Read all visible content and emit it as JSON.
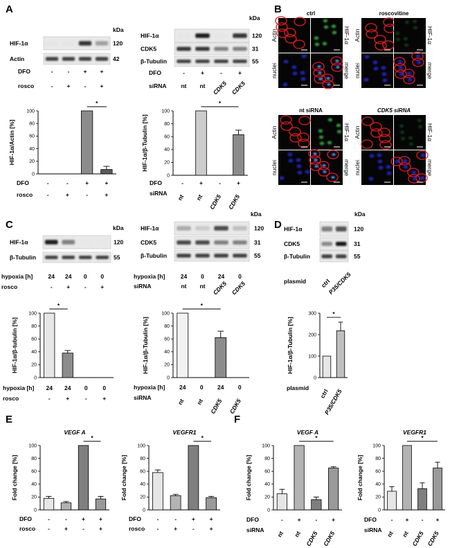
{
  "panels": {
    "A": "A",
    "B": "B",
    "C": "C",
    "D": "D",
    "E": "E",
    "F": "F"
  },
  "kda": "kDa",
  "blots": {
    "A1": {
      "rows": [
        {
          "name": "HIF-1α",
          "kda": "120",
          "bands": [
            0.03,
            0.03,
            0.85,
            0.35
          ]
        },
        {
          "name": "Actin",
          "kda": "42",
          "bands": [
            0.8,
            0.8,
            0.8,
            0.8
          ]
        }
      ],
      "conditions": [
        {
          "name": "DFO",
          "vals": [
            "-",
            "-",
            "+",
            "+"
          ]
        },
        {
          "name": "rosco",
          "vals": [
            "-",
            "+",
            "-",
            "+"
          ]
        }
      ]
    },
    "A2": {
      "rows": [
        {
          "name": "HIF-1α",
          "kda": "120",
          "bands": [
            0.03,
            0.95,
            0.03,
            0.85
          ]
        },
        {
          "name": "CDK5",
          "kda": "31",
          "bands": [
            0.85,
            0.85,
            0.5,
            0.5
          ]
        },
        {
          "name": "β-Tubulin",
          "kda": "55",
          "bands": [
            0.8,
            0.8,
            0.8,
            0.8
          ]
        }
      ],
      "conditions": [
        {
          "name": "DFO",
          "vals": [
            "-",
            "+",
            "-",
            "+"
          ]
        },
        {
          "name": "siRNA",
          "vals": [
            "nt",
            "nt",
            "CDK5",
            "CDK5"
          ]
        }
      ]
    },
    "C1": {
      "rows": [
        {
          "name": "HIF-1α",
          "kda": "120",
          "bands": [
            0.95,
            0.5,
            0.02,
            0.02
          ]
        },
        {
          "name": "β-Tubulin",
          "kda": "55",
          "bands": [
            0.8,
            0.8,
            0.8,
            0.8
          ]
        }
      ],
      "conditions": [
        {
          "name": "hypoxia [h]",
          "vals": [
            "24",
            "24",
            "0",
            "0"
          ]
        },
        {
          "name": "rosco",
          "vals": [
            "-",
            "+",
            "-",
            "+"
          ]
        }
      ]
    },
    "C2": {
      "rows": [
        {
          "name": "HIF-1α",
          "kda": "120",
          "bands": [
            0.3,
            0.15,
            0.75,
            0.2
          ]
        },
        {
          "name": "CDK5",
          "kda": "31",
          "bands": [
            0.75,
            0.75,
            0.5,
            0.5
          ]
        },
        {
          "name": "β-Tubulin",
          "kda": "55",
          "bands": [
            0.8,
            0.8,
            0.8,
            0.8
          ]
        }
      ],
      "conditions": [
        {
          "name": "hypoxia [h]",
          "vals": [
            "24",
            "0",
            "24",
            "0"
          ]
        },
        {
          "name": "siRNA",
          "vals": [
            "nt",
            "nt",
            "CDK5",
            "CDK5"
          ]
        }
      ]
    },
    "D": {
      "rows": [
        {
          "name": "HIF-1α",
          "kda": "120",
          "bands": [
            0.5,
            0.7
          ]
        },
        {
          "name": "CDK5",
          "kda": "31",
          "bands": [
            0.45,
            0.98
          ]
        },
        {
          "name": "β-Tubulin",
          "kda": "55",
          "bands": [
            0.8,
            0.8
          ]
        }
      ],
      "conditions": [
        {
          "name": "plasmid",
          "vals": [
            "ctrl",
            "P35/CDK5"
          ]
        }
      ]
    }
  },
  "microscopy": {
    "conditions": [
      "ctrl",
      "roscovitine",
      "nt siRNA",
      "CDK5 siRNA"
    ],
    "channels": [
      "Actin",
      "HIF-1α",
      "nuclei",
      "merge"
    ]
  },
  "chart_data": [
    {
      "id": "A1",
      "type": "bar",
      "ylabel": "HIF-1α/Actin [%]",
      "ylim": [
        0,
        100
      ],
      "yticks": [
        0,
        20,
        40,
        60,
        80,
        100
      ],
      "values": [
        0,
        0,
        100,
        7
      ],
      "errors": [
        0,
        0,
        0,
        5
      ],
      "colors": [
        "#cccccc",
        "#cccccc",
        "#8c8c8c",
        "#5a5a5a"
      ],
      "conditions": [
        {
          "name": "DFO",
          "vals": [
            "-",
            "-",
            "+",
            "+"
          ]
        },
        {
          "name": "rosco",
          "vals": [
            "-",
            "+",
            "-",
            "+"
          ]
        }
      ],
      "significance": [
        {
          "from": 2,
          "to": 3,
          "label": "*"
        }
      ]
    },
    {
      "id": "A2",
      "type": "bar",
      "ylabel": "HIF-1α/β-Tubulin [%]",
      "ylim": [
        0,
        100
      ],
      "yticks": [
        0,
        20,
        40,
        60,
        80,
        100
      ],
      "values": [
        0,
        100,
        0,
        63
      ],
      "errors": [
        0,
        0,
        0,
        7
      ],
      "colors": [
        "#cccccc",
        "#cccccc",
        "#8c8c8c",
        "#8c8c8c"
      ],
      "conditions": [
        {
          "name": "DFO",
          "vals": [
            "-",
            "+",
            "-",
            "+"
          ]
        },
        {
          "name": "siRNA",
          "vals": [
            "nt",
            "nt",
            "CDK5",
            "CDK5"
          ]
        }
      ],
      "significance": [
        {
          "from": 1,
          "to": 3,
          "label": "*"
        }
      ]
    },
    {
      "id": "C1",
      "type": "bar",
      "ylabel": "HIF-1α/β-tubulin [%]",
      "ylim": [
        0,
        100
      ],
      "yticks": [
        0,
        20,
        40,
        60,
        80,
        100
      ],
      "values": [
        100,
        38,
        0,
        0
      ],
      "errors": [
        0,
        4,
        0,
        0
      ],
      "colors": [
        "#e6e6e6",
        "#8c8c8c",
        "#cccccc",
        "#cccccc"
      ],
      "conditions": [
        {
          "name": "hypoxia [h]",
          "vals": [
            "24",
            "24",
            "0",
            "0"
          ]
        },
        {
          "name": "rosco",
          "vals": [
            "-",
            "+",
            "-",
            "+"
          ]
        }
      ],
      "significance": [
        {
          "from": 0,
          "to": 1,
          "label": "*"
        }
      ]
    },
    {
      "id": "C2",
      "type": "bar",
      "ylabel": "HIF-1α/β-Tubulin [%]",
      "ylim": [
        0,
        100
      ],
      "yticks": [
        0,
        20,
        40,
        60,
        80,
        100
      ],
      "values": [
        100,
        0,
        62,
        0
      ],
      "errors": [
        0,
        0,
        10,
        0
      ],
      "colors": [
        "#f2f2f2",
        "#cccccc",
        "#8c8c8c",
        "#cccccc"
      ],
      "conditions": [
        {
          "name": "hypoxia [h]",
          "vals": [
            "24",
            "0",
            "24",
            "0"
          ]
        },
        {
          "name": "siRNA",
          "vals": [
            "nt",
            "nt",
            "CDK5",
            "CDK5"
          ]
        }
      ],
      "significance": [
        {
          "from": 0,
          "to": 2,
          "label": "*"
        }
      ]
    },
    {
      "id": "D",
      "type": "bar",
      "ylabel": "HIF-1α/β-Tubulin [%]",
      "ylim": [
        0,
        300
      ],
      "yticks": [
        0,
        100,
        200,
        300
      ],
      "values": [
        100,
        218
      ],
      "errors": [
        0,
        40
      ],
      "colors": [
        "#e6e6e6",
        "#bfbfbf"
      ],
      "conditions": [
        {
          "name": "plasmid",
          "vals": [
            "ctrl",
            "P35/CDK5"
          ]
        }
      ],
      "significance": [
        {
          "from": 0,
          "to": 1,
          "label": "*"
        }
      ]
    },
    {
      "id": "E1",
      "type": "bar",
      "title": "VEGF A",
      "ylabel": "Fold change [%]",
      "ylim": [
        0,
        100
      ],
      "yticks": [
        0,
        20,
        40,
        60,
        80,
        100
      ],
      "values": [
        18,
        11,
        100,
        17
      ],
      "errors": [
        3,
        2,
        0,
        4
      ],
      "colors": [
        "#e6e6e6",
        "#b3b3b3",
        "#7f7f7f",
        "#999999"
      ],
      "conditions": [
        {
          "name": "DFO",
          "vals": [
            "-",
            "-",
            "+",
            "+"
          ]
        },
        {
          "name": "rosco",
          "vals": [
            "-",
            "+",
            "-",
            "+"
          ]
        }
      ],
      "significance": [
        {
          "from": 2,
          "to": 3,
          "label": "*"
        }
      ]
    },
    {
      "id": "E2",
      "type": "bar",
      "title": "VEGFR1",
      "ylabel": "Fold change [%]",
      "ylim": [
        0,
        100
      ],
      "yticks": [
        0,
        20,
        40,
        60,
        80,
        100
      ],
      "values": [
        58,
        22,
        100,
        19
      ],
      "errors": [
        4,
        2,
        0,
        2
      ],
      "colors": [
        "#e6e6e6",
        "#b3b3b3",
        "#7f7f7f",
        "#999999"
      ],
      "conditions": [
        {
          "name": "DFO",
          "vals": [
            "-",
            "-",
            "+",
            "+"
          ]
        },
        {
          "name": "rosco",
          "vals": [
            "-",
            "+",
            "-",
            "+"
          ]
        }
      ],
      "significance": [
        {
          "from": 2,
          "to": 3,
          "label": "*"
        }
      ]
    },
    {
      "id": "F1",
      "type": "bar",
      "title": "VEGF A",
      "ylabel": "Fold change [%]",
      "ylim": [
        0,
        100
      ],
      "yticks": [
        0,
        20,
        40,
        60,
        80,
        100
      ],
      "values": [
        25,
        100,
        16,
        65
      ],
      "errors": [
        7,
        0,
        4,
        2
      ],
      "colors": [
        "#e6e6e6",
        "#b3b3b3",
        "#7f7f7f",
        "#999999"
      ],
      "conditions": [
        {
          "name": "DFO",
          "vals": [
            "-",
            "+",
            "-",
            "+"
          ]
        },
        {
          "name": "siRNA",
          "vals": [
            "nt",
            "nt",
            "CDK5",
            "CDK5"
          ]
        }
      ],
      "significance": [
        {
          "from": 1,
          "to": 3,
          "label": "*"
        }
      ]
    },
    {
      "id": "F2",
      "type": "bar",
      "title": "VEGFR1",
      "ylabel": "Fold change [%]",
      "ylim": [
        0,
        100
      ],
      "yticks": [
        0,
        20,
        40,
        60,
        80,
        100
      ],
      "values": [
        29,
        100,
        33,
        65
      ],
      "errors": [
        7,
        0,
        9,
        9
      ],
      "colors": [
        "#e6e6e6",
        "#b3b3b3",
        "#7f7f7f",
        "#999999"
      ],
      "conditions": [
        {
          "name": "DFO",
          "vals": [
            "-",
            "+",
            "-",
            "+"
          ]
        },
        {
          "name": "siRNA",
          "vals": [
            "nt",
            "nt",
            "CDK5",
            "CDK5"
          ]
        }
      ],
      "significance": [
        {
          "from": 1,
          "to": 3,
          "label": "*"
        }
      ]
    }
  ]
}
